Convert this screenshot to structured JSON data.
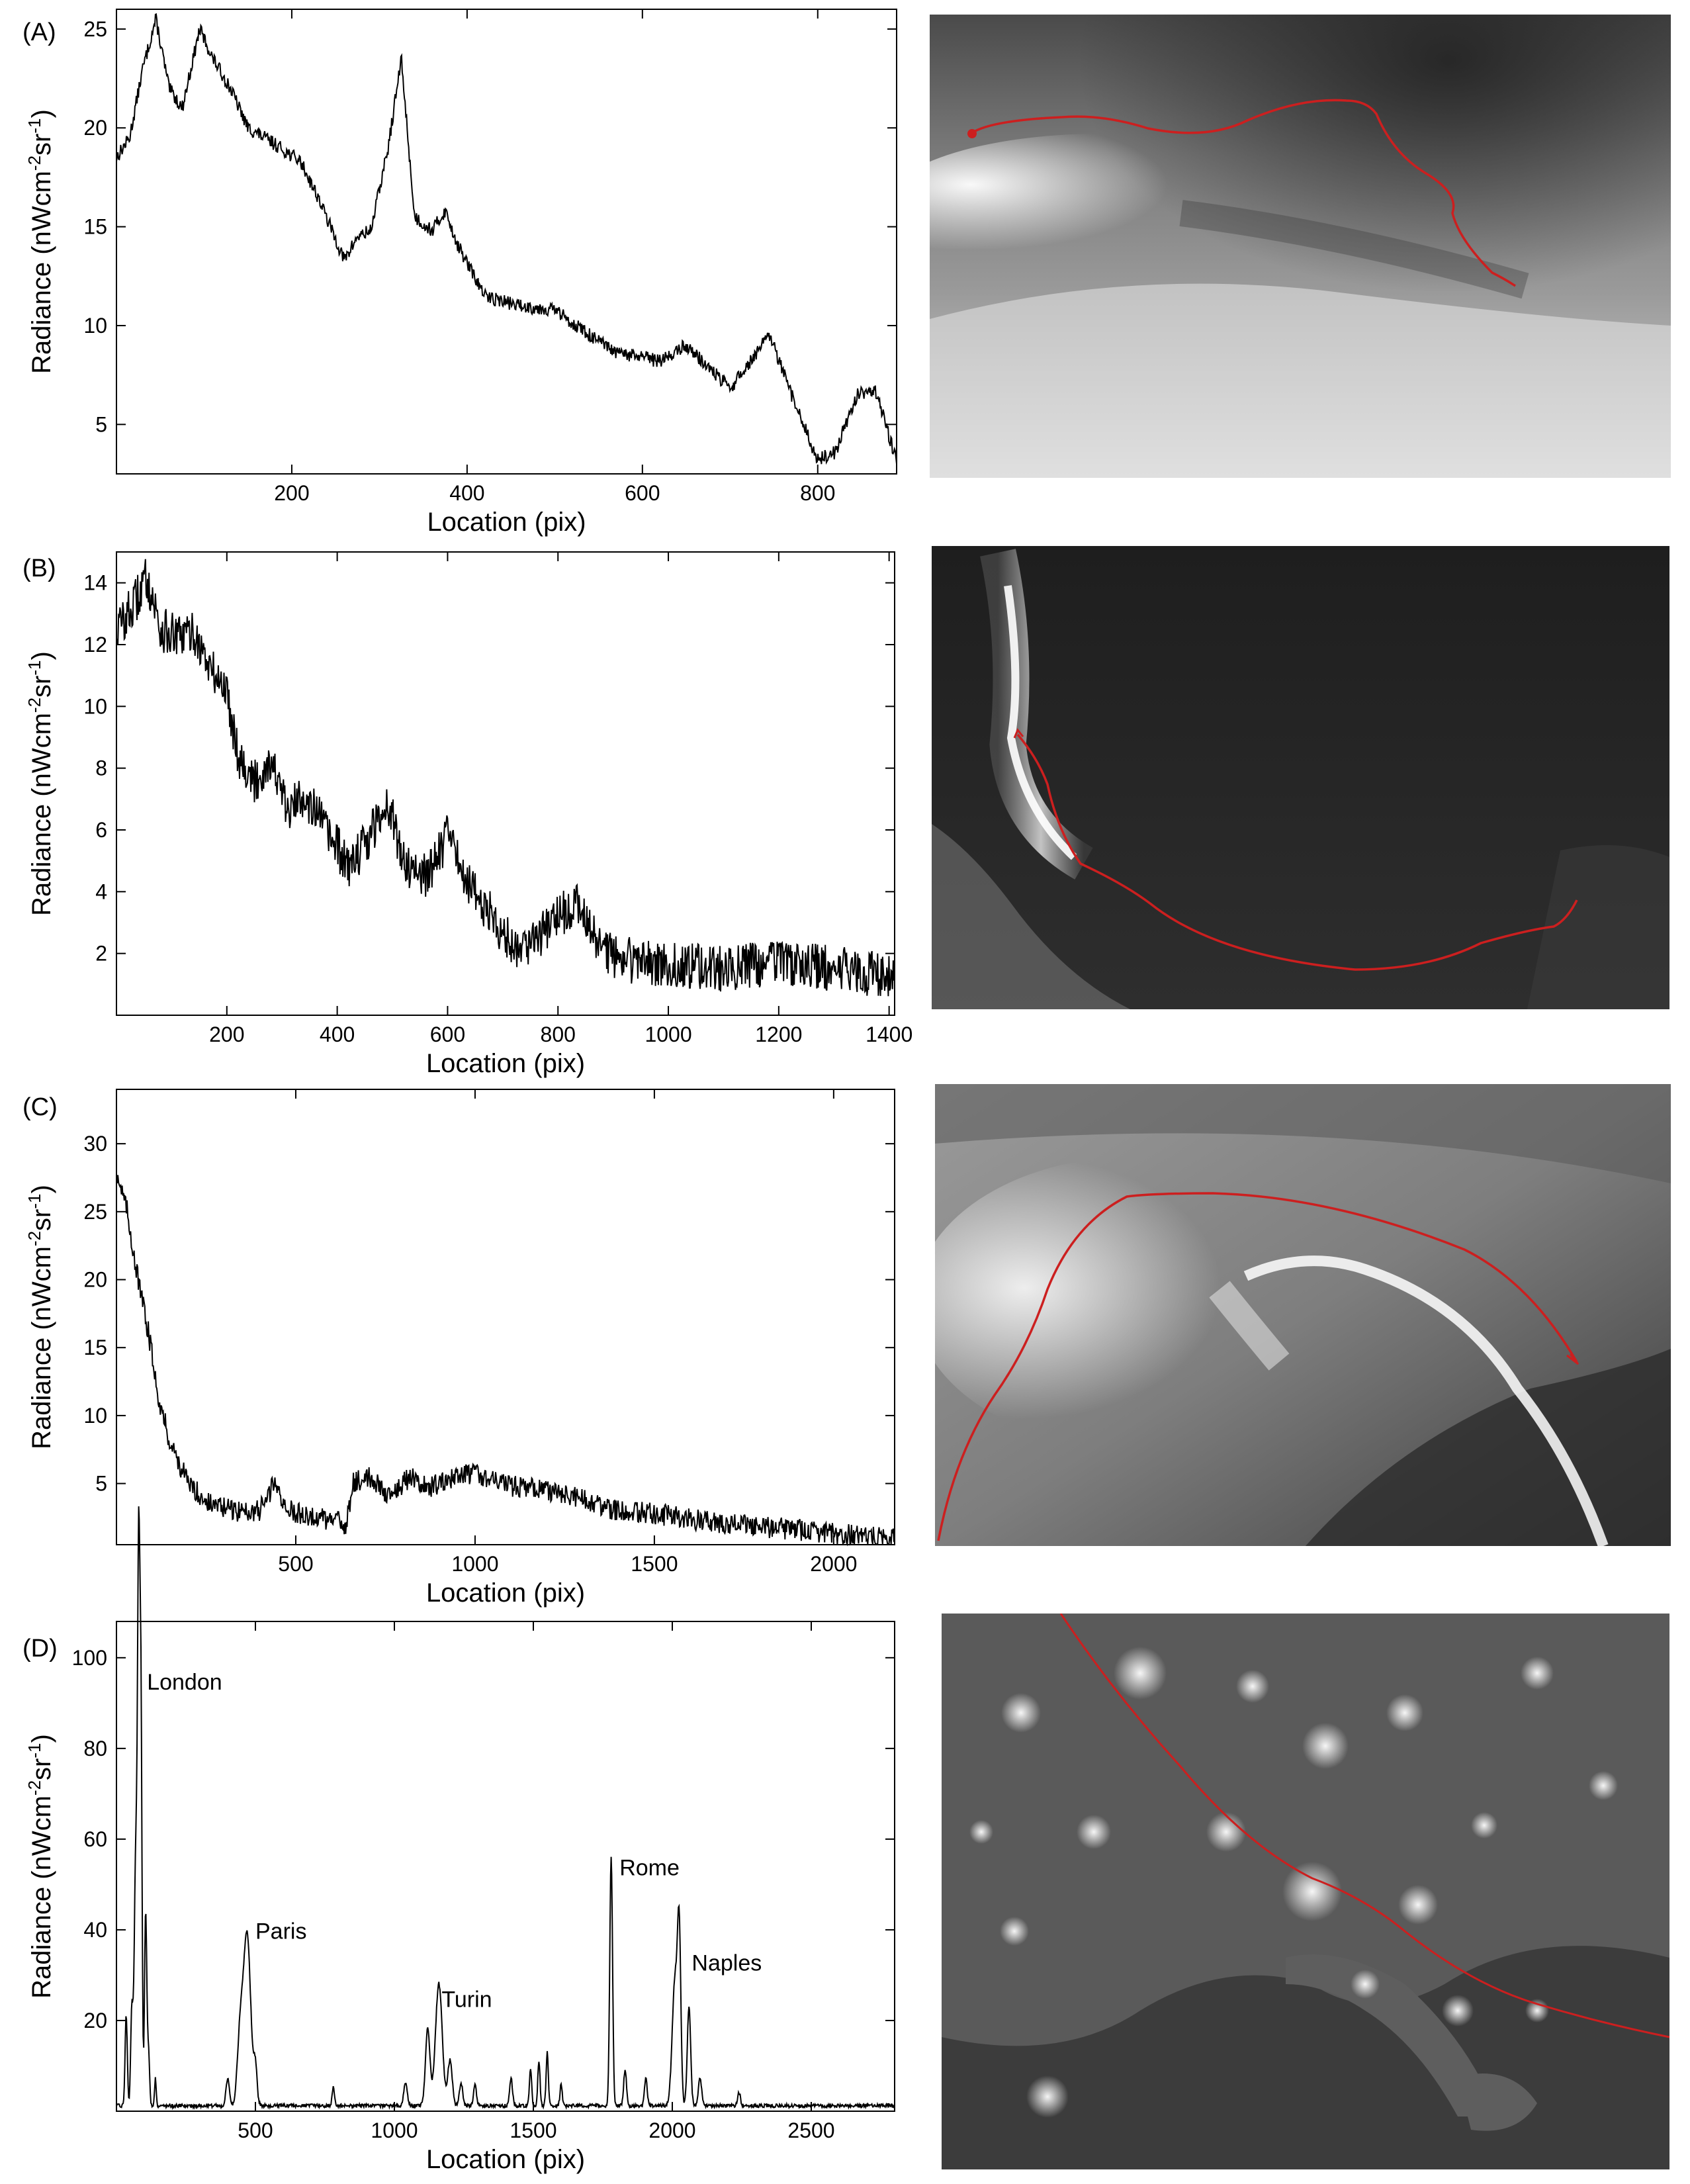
{
  "panels": [
    {
      "label": "(A)"
    },
    {
      "label": "(B)"
    },
    {
      "label": "(C)"
    },
    {
      "label": "(D)"
    }
  ],
  "chart_data": [
    {
      "type": "line",
      "panel": "(A)",
      "xlabel": "Location (pix)",
      "ylabel": "Radiance (nWcm-2sr-1)",
      "ylabel_parts": [
        "Radiance (nWcm",
        "-2",
        "sr",
        "-1",
        ")"
      ],
      "xlim": [
        0,
        890
      ],
      "ylim": [
        2.5,
        26
      ],
      "xticks": [
        200,
        400,
        600,
        800
      ],
      "yticks": [
        5,
        10,
        15,
        20,
        25
      ],
      "noise": 0.35,
      "series": [
        {
          "x": [
            0,
            15,
            30,
            45,
            60,
            75,
            95,
            110,
            130,
            150,
            180,
            210,
            230,
            260,
            275,
            290,
            310,
            325,
            340,
            360,
            375,
            390,
            420,
            460,
            500,
            540,
            570,
            600,
            620,
            650,
            700,
            745,
            770,
            800,
            820,
            845,
            865,
            890
          ],
          "y": [
            18.5,
            19.5,
            23,
            25.5,
            22,
            21,
            25,
            23.5,
            22,
            20,
            19.2,
            18.3,
            16.5,
            13.3,
            14.5,
            14.8,
            19,
            23.5,
            15.5,
            14.8,
            15.8,
            14,
            11.5,
            11,
            10.8,
            9.5,
            8.6,
            8.4,
            8.2,
            9,
            6.8,
            9.5,
            6.5,
            3.2,
            3.6,
            6.5,
            6.8,
            3.2
          ]
        }
      ],
      "annotations": [],
      "photo_track": {
        "color": "#cc1f1f"
      }
    },
    {
      "type": "line",
      "panel": "(B)",
      "xlabel": "Location (pix)",
      "ylabel": "Radiance (nWcm-2sr-1)",
      "ylabel_parts": [
        "Radiance (nWcm",
        "-2",
        "sr",
        "-1",
        ")"
      ],
      "xlim": [
        0,
        1410
      ],
      "ylim": [
        0,
        15
      ],
      "xticks": [
        200,
        400,
        600,
        800,
        1000,
        1200,
        1400
      ],
      "yticks": [
        2,
        4,
        6,
        8,
        10,
        12,
        14
      ],
      "noise": 0.75,
      "series": [
        {
          "x": [
            0,
            30,
            55,
            80,
            110,
            140,
            170,
            200,
            220,
            250,
            280,
            310,
            340,
            380,
            420,
            460,
            490,
            520,
            560,
            600,
            640,
            680,
            720,
            760,
            800,
            840,
            880,
            920,
            960,
            1000,
            1050,
            1100,
            1150,
            1200,
            1250,
            1300,
            1350,
            1410
          ],
          "y": [
            12.5,
            13.2,
            14.2,
            12.5,
            12.2,
            12.4,
            11.2,
            10.5,
            8.5,
            7.5,
            8.3,
            6.5,
            7.2,
            6,
            4.8,
            5.8,
            7,
            5,
            4.5,
            5.8,
            4.2,
            3.2,
            2.2,
            2.5,
            3.2,
            3.6,
            2.1,
            1.8,
            1.7,
            1.6,
            1.6,
            1.5,
            1.6,
            1.7,
            1.6,
            1.5,
            1.4,
            1.2
          ]
        }
      ],
      "annotations": [],
      "photo_track": {
        "color": "#cc1f1f"
      }
    },
    {
      "type": "line",
      "panel": "(C)",
      "xlabel": "Location (pix)",
      "ylabel": "Radiance (nWcm-2sr-1)",
      "ylabel_parts": [
        "Radiance (nWcm",
        "-2",
        "sr",
        "-1",
        ")"
      ],
      "xlim": [
        0,
        2170
      ],
      "ylim": [
        0.5,
        34
      ],
      "xticks": [
        500,
        1000,
        1500,
        2000
      ],
      "yticks": [
        5,
        10,
        15,
        20,
        25,
        30
      ],
      "noise": 0.8,
      "series": [
        {
          "x": [
            0,
            30,
            60,
            90,
            120,
            150,
            200,
            260,
            330,
            400,
            440,
            480,
            560,
            640,
            660,
            700,
            760,
            820,
            880,
            960,
            1000,
            1100,
            1200,
            1300,
            1400,
            1500,
            1600,
            1700,
            1800,
            1900,
            2000,
            2100,
            2170
          ],
          "y": [
            28,
            25,
            20,
            16,
            11,
            8,
            5,
            3.5,
            3,
            3,
            5,
            3,
            2.5,
            2,
            5,
            5.5,
            4.2,
            5.5,
            4.8,
            5.5,
            5.8,
            4.8,
            4.5,
            3.8,
            3,
            2.8,
            2.4,
            2.1,
            1.8,
            1.6,
            1.3,
            1.1,
            1
          ]
        }
      ],
      "annotations": [],
      "photo_track": {
        "color": "#cc1f1f"
      }
    },
    {
      "type": "line",
      "panel": "(D)",
      "xlabel": "Location (pix)",
      "ylabel": "Radiance (nWcm-2sr-1)",
      "ylabel_parts": [
        "Radiance (nWcm",
        "-2",
        "sr",
        "-1",
        ")"
      ],
      "xlim": [
        0,
        2800
      ],
      "ylim": [
        0,
        108
      ],
      "xticks": [
        500,
        1000,
        1500,
        2000,
        2500
      ],
      "yticks": [
        20,
        40,
        60,
        80,
        100
      ],
      "noise": 0,
      "baseline": 1.2,
      "peaks": [
        {
          "x": 35,
          "h": 20,
          "w": 4
        },
        {
          "x": 55,
          "h": 20,
          "w": 4
        },
        {
          "x": 70,
          "h": 57,
          "w": 6
        },
        {
          "x": 80,
          "h": 106,
          "w": 4
        },
        {
          "x": 88,
          "h": 86,
          "w": 4
        },
        {
          "x": 105,
          "h": 43,
          "w": 4
        },
        {
          "x": 115,
          "h": 12,
          "w": 4
        },
        {
          "x": 140,
          "h": 6,
          "w": 3
        },
        {
          "x": 400,
          "h": 6,
          "w": 6
        },
        {
          "x": 445,
          "h": 15,
          "w": 10
        },
        {
          "x": 470,
          "h": 38,
          "w": 13
        },
        {
          "x": 500,
          "h": 8,
          "w": 6
        },
        {
          "x": 780,
          "h": 4,
          "w": 4
        },
        {
          "x": 1040,
          "h": 5,
          "w": 6
        },
        {
          "x": 1120,
          "h": 17,
          "w": 8
        },
        {
          "x": 1160,
          "h": 27,
          "w": 12
        },
        {
          "x": 1200,
          "h": 10,
          "w": 8
        },
        {
          "x": 1240,
          "h": 5,
          "w": 6
        },
        {
          "x": 1290,
          "h": 5,
          "w": 5
        },
        {
          "x": 1420,
          "h": 6,
          "w": 5
        },
        {
          "x": 1490,
          "h": 8,
          "w": 4
        },
        {
          "x": 1520,
          "h": 10,
          "w": 4
        },
        {
          "x": 1550,
          "h": 12,
          "w": 4
        },
        {
          "x": 1600,
          "h": 5,
          "w": 4
        },
        {
          "x": 1780,
          "h": 55,
          "w": 5
        },
        {
          "x": 1830,
          "h": 8,
          "w": 5
        },
        {
          "x": 1905,
          "h": 6,
          "w": 5
        },
        {
          "x": 2010,
          "h": 28,
          "w": 10
        },
        {
          "x": 2025,
          "h": 34,
          "w": 6
        },
        {
          "x": 2060,
          "h": 22,
          "w": 6
        },
        {
          "x": 2100,
          "h": 6,
          "w": 6
        },
        {
          "x": 2240,
          "h": 3,
          "w": 5
        }
      ],
      "annotations": [
        {
          "text": "London",
          "x": 110,
          "y": 93
        },
        {
          "text": "Paris",
          "x": 500,
          "y": 38
        },
        {
          "text": "Turin",
          "x": 1170,
          "y": 23
        },
        {
          "text": "Rome",
          "x": 1810,
          "y": 52
        },
        {
          "text": "Naples",
          "x": 2070,
          "y": 31
        }
      ],
      "photo_track": {
        "color": "#cc1f1f"
      }
    }
  ]
}
